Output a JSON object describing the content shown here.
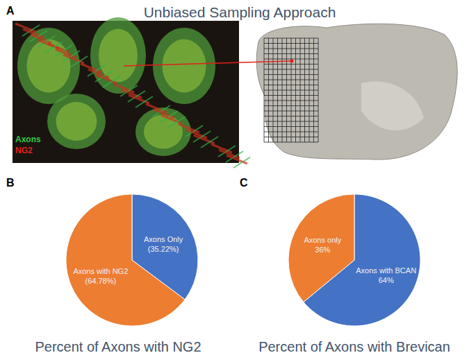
{
  "panel_a": {
    "panel_label": "A",
    "title": "Unbiased Sampling Approach",
    "image_legend": [
      {
        "text": "Axons",
        "color": "#2ecc40"
      },
      {
        "text": "NG2",
        "color": "#e0201a"
      }
    ]
  },
  "chart_data": [
    {
      "type": "pie",
      "panel_label": "B",
      "title": "Percent of Axons with NG2",
      "categories": [
        "Axons Only",
        "Axons with NG2"
      ],
      "values": [
        35.22,
        64.78
      ],
      "value_labels": [
        "(35.22%)",
        "(64.78%)"
      ],
      "colors": [
        "#4472c4",
        "#ed7d31"
      ],
      "data_labels": true
    },
    {
      "type": "pie",
      "panel_label": "C",
      "title": "Percent of Axons with Brevican",
      "categories": [
        "Axons with BCAN",
        "Axons only"
      ],
      "values": [
        64,
        36
      ],
      "value_labels": [
        "64%",
        "36%"
      ],
      "colors": [
        "#4472c4",
        "#ed7d31"
      ],
      "data_labels": true
    }
  ]
}
